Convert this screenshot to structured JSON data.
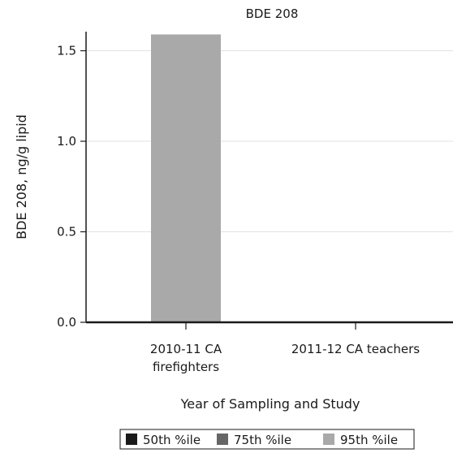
{
  "chart_data": {
    "type": "bar",
    "title": "BDE 208",
    "xlabel": "Year of Sampling and Study",
    "ylabel": "BDE 208, ng/g lipid",
    "categories": [
      [
        "2010-11 CA",
        "firefighters"
      ],
      [
        "2011-12 CA teachers"
      ]
    ],
    "series": [
      {
        "name": "50th %ile",
        "color": "#1a1a1a",
        "values": [
          0,
          0
        ]
      },
      {
        "name": "75th %ile",
        "color": "#666666",
        "values": [
          0,
          0
        ]
      },
      {
        "name": "95th %ile",
        "color": "#a9a9a9",
        "values": [
          1.59,
          0
        ]
      }
    ],
    "ylim": [
      0,
      1.6
    ],
    "yticks": [
      "0.0",
      "0.5",
      "1.0",
      "1.5"
    ],
    "ytick_values": [
      0,
      0.5,
      1.0,
      1.5
    ],
    "grid": true,
    "legend_position": "bottom"
  }
}
